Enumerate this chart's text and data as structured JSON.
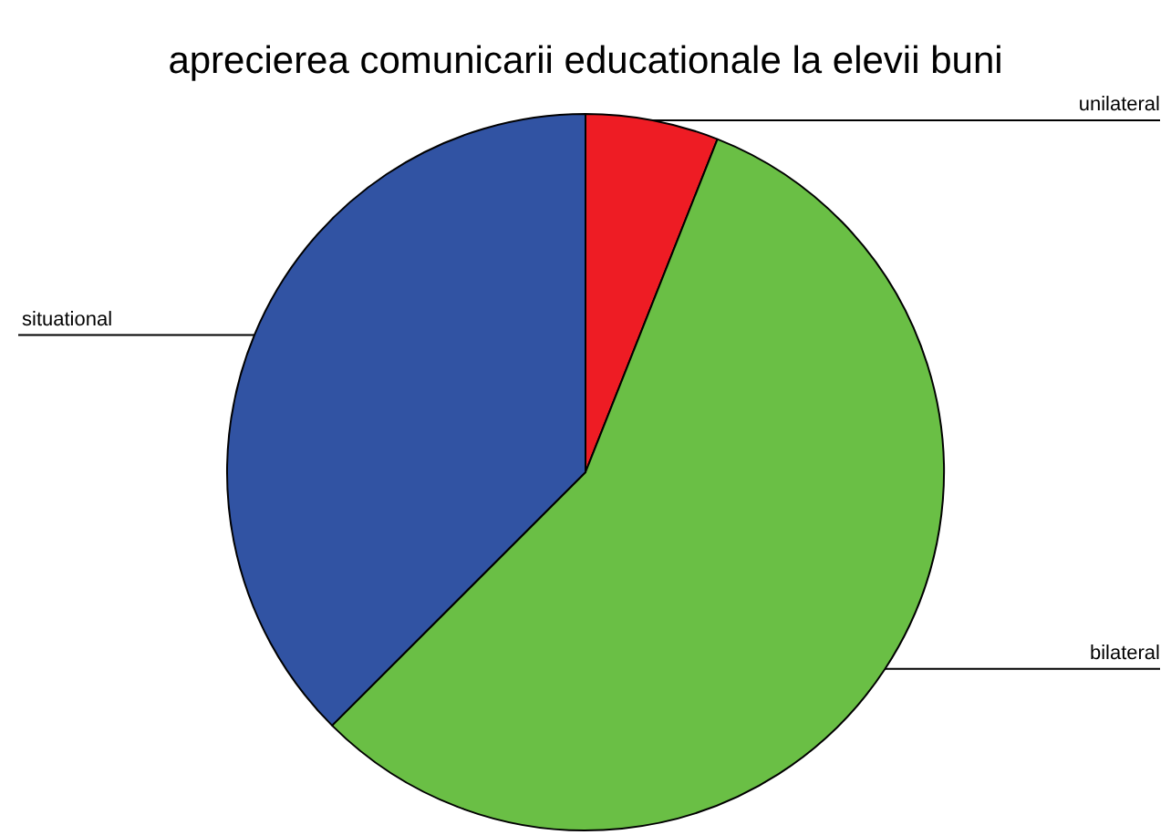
{
  "chart_data": {
    "type": "pie",
    "title": "aprecierea comunicarii educationale la elevii buni",
    "categories": [
      "unilateral",
      "bilateral",
      "situational"
    ],
    "values": [
      6,
      56.5,
      37.5
    ],
    "colors": [
      "#ee1c24",
      "#6abf45",
      "#3153a3"
    ],
    "legend": false
  }
}
